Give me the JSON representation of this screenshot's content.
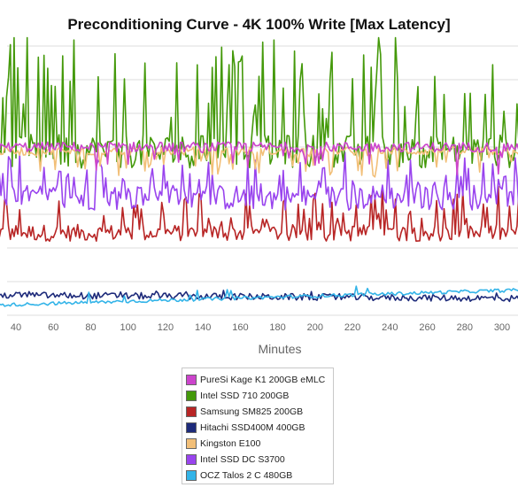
{
  "chart_data": {
    "type": "line",
    "title": "Preconditioning Curve - 4K 100% Write [Max Latency]",
    "xlabel": "Minutes",
    "ylabel": "",
    "xlim": [
      28,
      310
    ],
    "ylim": [
      0,
      320
    ],
    "x_ticks": [
      40,
      60,
      80,
      100,
      120,
      140,
      160,
      180,
      200,
      220,
      240,
      260,
      280,
      300
    ],
    "grid": true,
    "legend_position": "bottom",
    "series": [
      {
        "name": "PureSi Kage K1 200GB eMLC",
        "color": "#cc44cc",
        "level": 200,
        "jitter": 6,
        "spike_prob": 0.08,
        "spike": 20,
        "spike_dir": -1
      },
      {
        "name": "Intel SSD 710 200GB",
        "color": "#44990a",
        "level": 195,
        "jitter": 20,
        "spike_prob": 0.25,
        "spike": 90,
        "spike_dir": 1
      },
      {
        "name": "Samsung SM825 200GB",
        "color": "#b82525",
        "level": 98,
        "jitter": 10,
        "spike_prob": 0.22,
        "spike": 32,
        "spike_dir": 1
      },
      {
        "name": "Hitachi SSD400M 400GB",
        "color": "#1d2a7a",
        "level": 20,
        "jitter": 4,
        "spike_prob": 0.05,
        "spike": 6,
        "spike_dir": 1
      },
      {
        "name": "Kingston E100",
        "color": "#f2bf78",
        "level": 195,
        "jitter": 5,
        "spike_prob": 0.15,
        "spike": 18,
        "spike_dir": -1
      },
      {
        "name": "Intel SSD DC S3700",
        "color": "#9944ee",
        "level": 140,
        "jitter": 15,
        "spike_prob": 0.2,
        "spike": 30,
        "spike_dir": 1
      },
      {
        "name": "OCZ Talos 2 C 480GB",
        "color": "#33b4e8",
        "level": 20,
        "jitter": 2,
        "spike_prob": 0.03,
        "spike": 8,
        "spike_dir": 1
      }
    ],
    "series_trends": {
      "Hitachi SSD400M 400GB": {
        "start": 24,
        "end": 20
      },
      "OCZ Talos 2 C 480GB": {
        "start": 12,
        "end": 30
      }
    }
  }
}
